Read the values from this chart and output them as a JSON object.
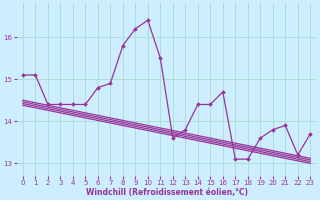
{
  "title": "",
  "xlabel": "Windchill (Refroidissement éolien,°C)",
  "background_color": "#cceeff",
  "grid_color": "#aaddcc",
  "line_color": "#993399",
  "ylim": [
    12.7,
    16.8
  ],
  "xlim": [
    -0.5,
    23.5
  ],
  "yticks": [
    13,
    14,
    15,
    16
  ],
  "xticks": [
    0,
    1,
    2,
    3,
    4,
    5,
    6,
    7,
    8,
    9,
    10,
    11,
    12,
    13,
    14,
    15,
    16,
    17,
    18,
    19,
    20,
    21,
    22,
    23
  ],
  "main_series": [
    15.1,
    15.1,
    14.4,
    14.4,
    14.4,
    14.4,
    14.8,
    14.9,
    15.8,
    16.2,
    16.4,
    15.5,
    13.6,
    13.8,
    14.4,
    14.4,
    14.7,
    13.1,
    13.1,
    13.6,
    13.8,
    13.9,
    13.2,
    13.7
  ],
  "linear_series": [
    [
      14.38,
      14.32,
      14.26,
      14.2,
      14.14,
      14.08,
      14.02,
      13.96,
      13.9,
      13.84,
      13.78,
      13.72,
      13.66,
      13.6,
      13.54,
      13.48,
      13.42,
      13.36,
      13.3,
      13.24,
      13.18,
      13.12,
      13.06,
      13.0
    ],
    [
      14.42,
      14.36,
      14.3,
      14.24,
      14.18,
      14.12,
      14.06,
      14.0,
      13.94,
      13.88,
      13.82,
      13.76,
      13.7,
      13.64,
      13.58,
      13.52,
      13.46,
      13.4,
      13.34,
      13.28,
      13.22,
      13.16,
      13.1,
      13.04
    ],
    [
      14.46,
      14.4,
      14.34,
      14.28,
      14.22,
      14.16,
      14.1,
      14.04,
      13.98,
      13.92,
      13.86,
      13.8,
      13.74,
      13.68,
      13.62,
      13.56,
      13.5,
      13.44,
      13.38,
      13.32,
      13.26,
      13.2,
      13.14,
      13.08
    ],
    [
      14.5,
      14.44,
      14.38,
      14.32,
      14.26,
      14.2,
      14.14,
      14.08,
      14.02,
      13.96,
      13.9,
      13.84,
      13.78,
      13.72,
      13.66,
      13.6,
      13.54,
      13.48,
      13.42,
      13.36,
      13.3,
      13.24,
      13.18,
      13.12
    ]
  ],
  "marker": "D",
  "markersize": 2,
  "linewidth": 0.9,
  "tick_fontsize": 5,
  "xlabel_fontsize": 5.5
}
